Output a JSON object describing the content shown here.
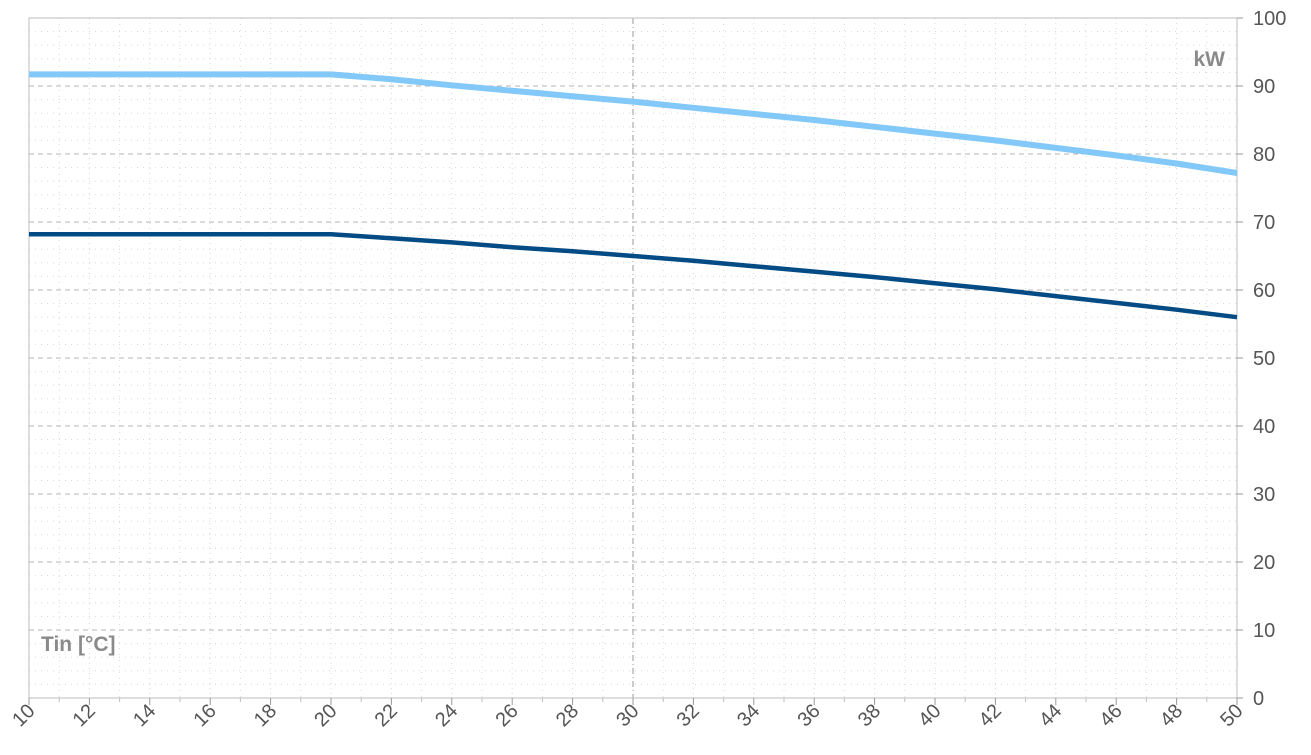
{
  "chart_data": {
    "type": "line",
    "xlabel": "Tin [°C]",
    "ylabel": "kW",
    "xlim": [
      10,
      50
    ],
    "ylim": [
      0,
      100
    ],
    "x_ticks": [
      10,
      12,
      14,
      16,
      18,
      20,
      22,
      24,
      26,
      28,
      30,
      32,
      34,
      36,
      38,
      40,
      42,
      44,
      46,
      48,
      50
    ],
    "y_ticks": [
      0,
      10,
      20,
      30,
      40,
      50,
      60,
      70,
      80,
      90,
      100
    ],
    "y_axis_side": "right",
    "grid": true,
    "series": [
      {
        "color": "#82c8f8",
        "x": [
          10,
          12,
          14,
          16,
          18,
          20,
          22,
          24,
          26,
          28,
          30,
          32,
          34,
          36,
          38,
          40,
          42,
          44,
          46,
          48,
          50
        ],
        "y": [
          91.7,
          91.7,
          91.7,
          91.7,
          91.7,
          91.7,
          91.0,
          90.1,
          89.3,
          88.5,
          87.7,
          86.8,
          85.9,
          85.0,
          84.0,
          83.0,
          82.0,
          80.9,
          79.8,
          78.6,
          77.2
        ]
      },
      {
        "color": "#024b85",
        "x": [
          10,
          12,
          14,
          16,
          18,
          20,
          22,
          24,
          26,
          28,
          30,
          32,
          34,
          36,
          38,
          40,
          42,
          44,
          46,
          48,
          50
        ],
        "y": [
          68.2,
          68.2,
          68.2,
          68.2,
          68.2,
          68.2,
          67.6,
          67.0,
          66.3,
          65.7,
          65.0,
          64.3,
          63.5,
          62.7,
          61.9,
          61.0,
          60.1,
          59.1,
          58.1,
          57.1,
          56.0
        ]
      }
    ]
  }
}
